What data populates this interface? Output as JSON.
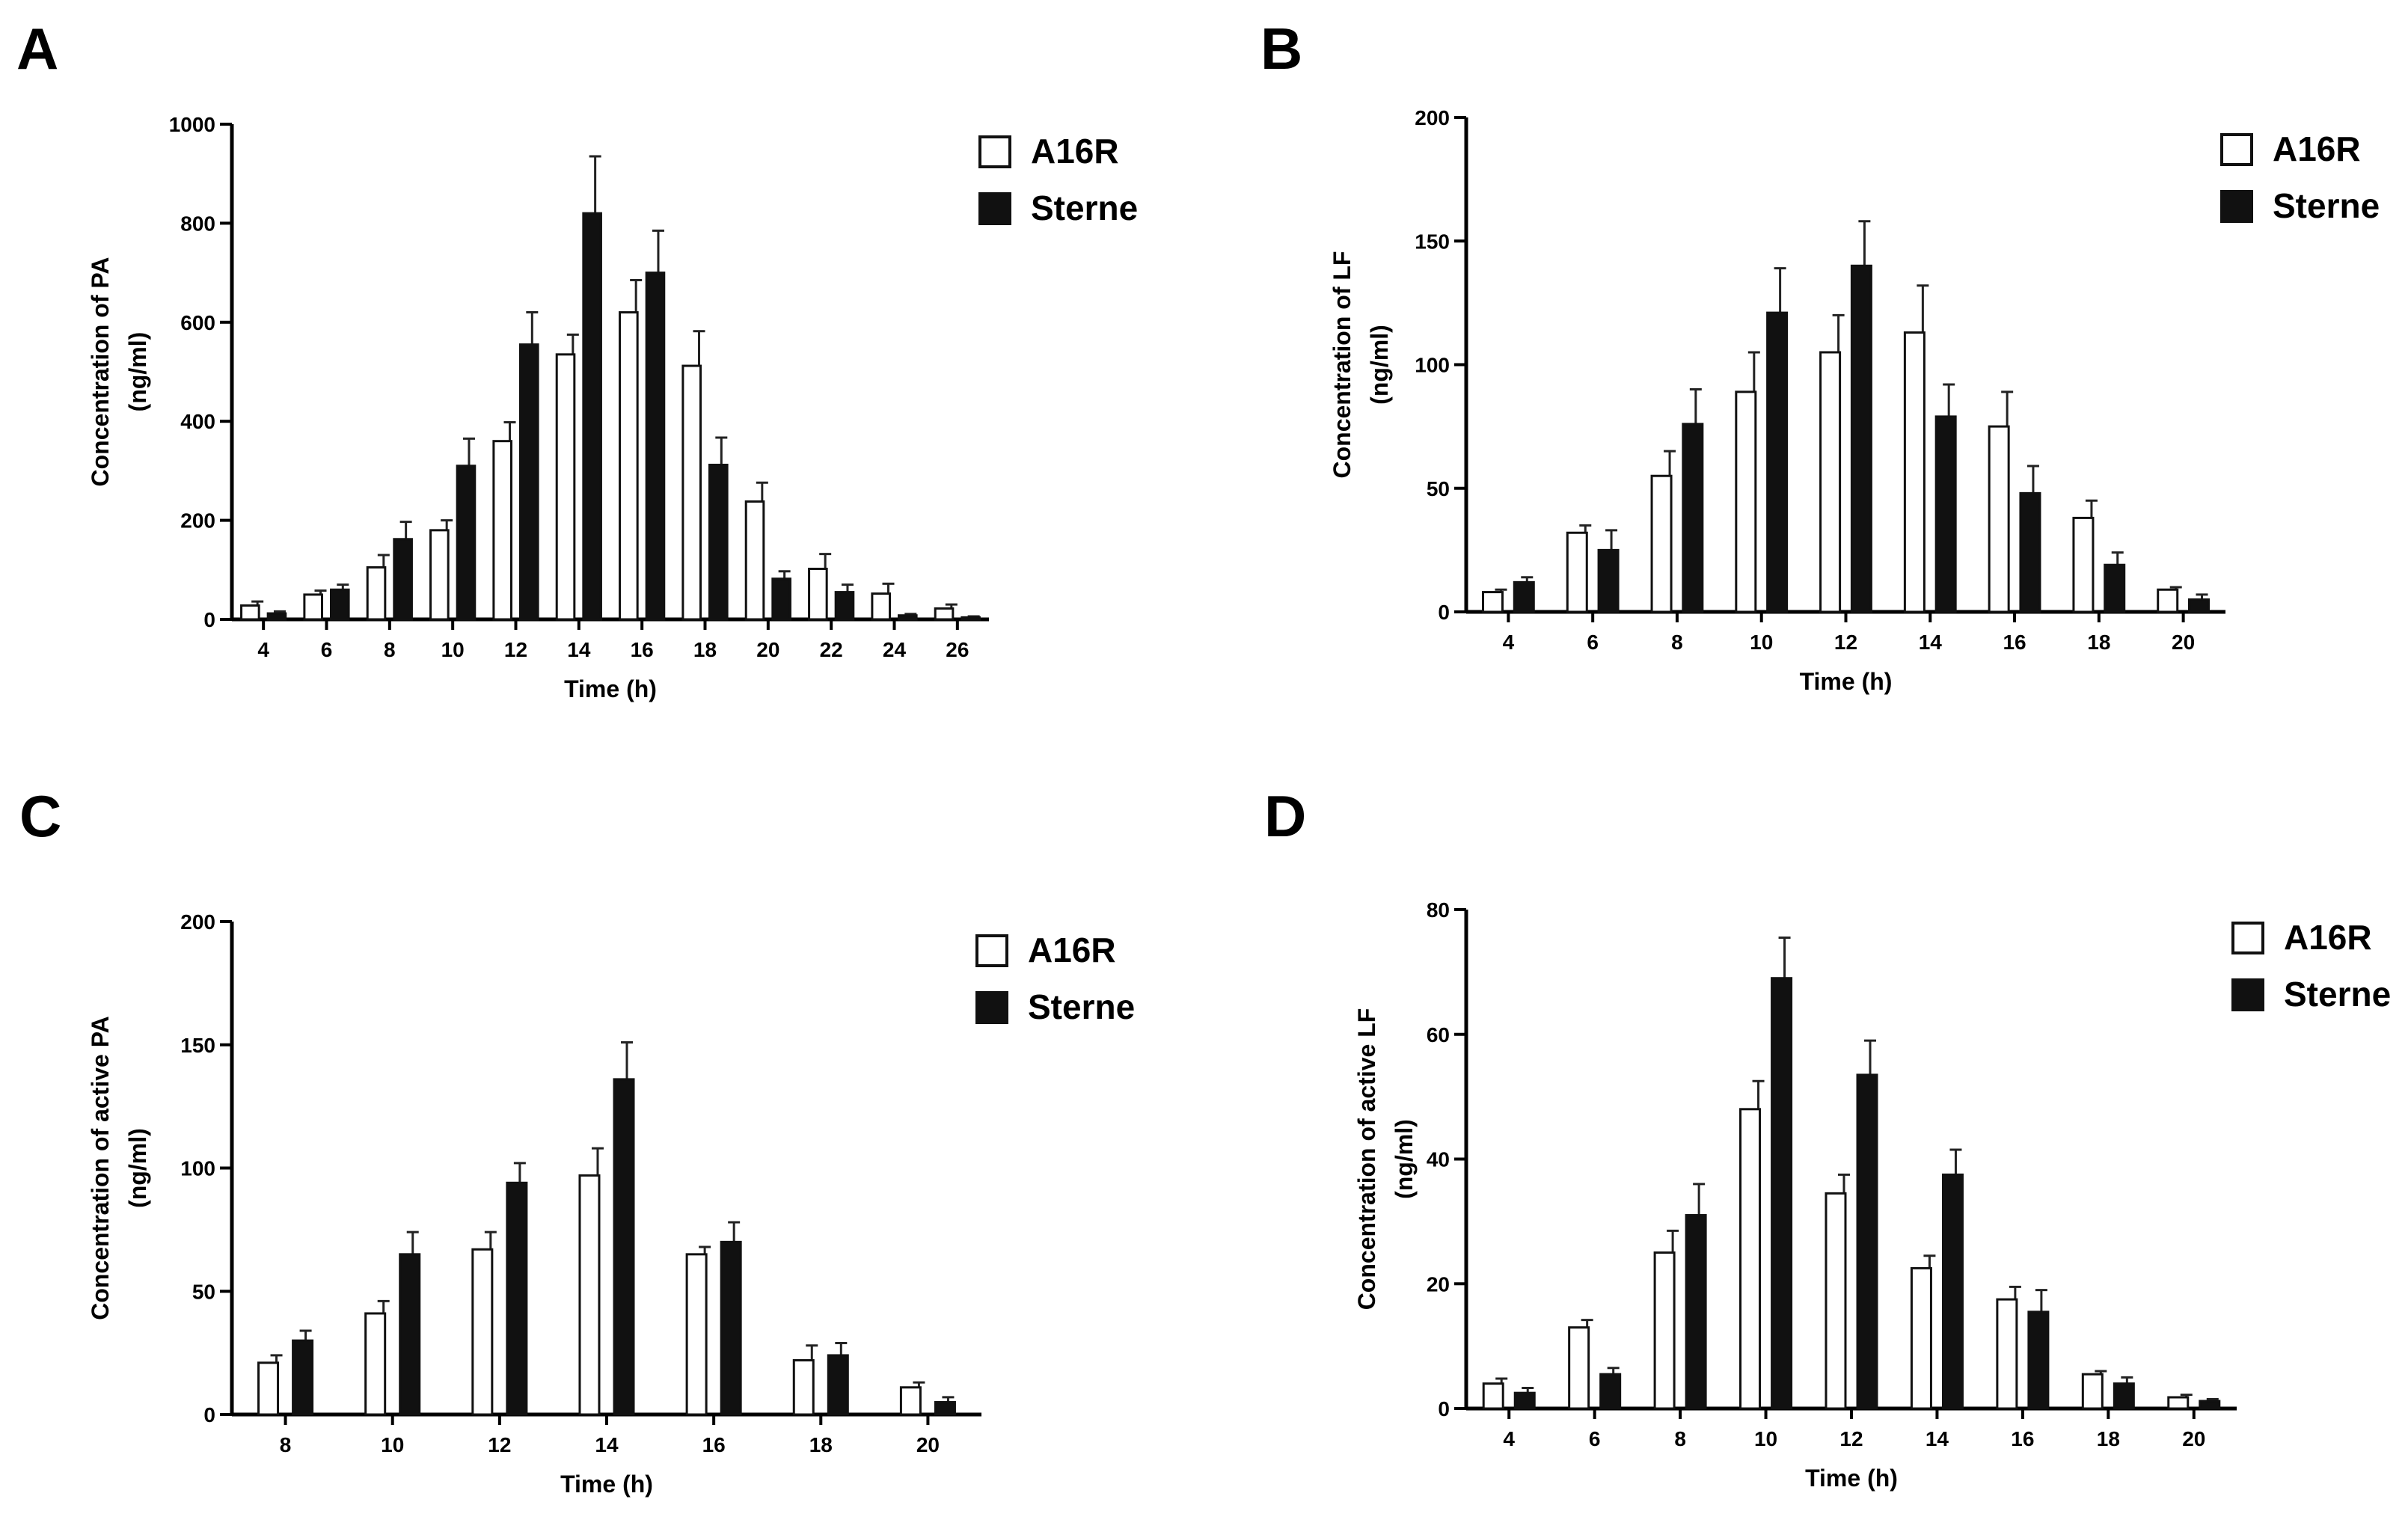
{
  "colors": {
    "a16r_fill": "#ffffff",
    "sterne_fill": "#111111",
    "axis": "#000000",
    "background": "#ffffff"
  },
  "chart_data": [
    {
      "panel": "A",
      "type": "bar",
      "title": "",
      "xlabel": "Time (h)",
      "ylabel_line1": "Concentration of PA",
      "ylabel_line2": "(ng/ml)",
      "categories": [
        "4",
        "6",
        "8",
        "10",
        "12",
        "14",
        "16",
        "18",
        "20",
        "22",
        "24",
        "26"
      ],
      "ylim": [
        0,
        1000
      ],
      "yticks": [
        0,
        200,
        400,
        600,
        800,
        1000
      ],
      "ytick_labels": [
        "0",
        "200",
        "400",
        "600",
        "800",
        "1000"
      ],
      "series": [
        {
          "name": "A16R",
          "values": [
            28,
            50,
            105,
            180,
            360,
            535,
            620,
            512,
            238,
            102,
            52,
            22
          ],
          "errors": [
            8,
            8,
            25,
            20,
            38,
            40,
            65,
            70,
            38,
            30,
            20,
            8
          ]
        },
        {
          "name": "Sterne",
          "values": [
            12,
            60,
            162,
            310,
            555,
            820,
            700,
            312,
            82,
            55,
            8,
            4
          ],
          "errors": [
            4,
            10,
            35,
            55,
            65,
            115,
            85,
            55,
            15,
            15,
            3,
            2
          ]
        }
      ],
      "legend": [
        "A16R",
        "Sterne"
      ],
      "legend_position": "top-right",
      "grid": false
    },
    {
      "panel": "B",
      "type": "bar",
      "title": "",
      "xlabel": "Time (h)",
      "ylabel_line1": "Concentration of LF",
      "ylabel_line2": "(ng/ml)",
      "categories": [
        "4",
        "6",
        "8",
        "10",
        "12",
        "14",
        "16",
        "18",
        "20"
      ],
      "ylim": [
        0,
        200
      ],
      "yticks": [
        0,
        50,
        100,
        150,
        200
      ],
      "ytick_labels": [
        "0",
        "50",
        "100",
        "150",
        "200"
      ],
      "series": [
        {
          "name": "A16R",
          "values": [
            8,
            32,
            55,
            89,
            105,
            113,
            75,
            38,
            9
          ],
          "errors": [
            1,
            3,
            10,
            16,
            15,
            19,
            14,
            7,
            1
          ]
        },
        {
          "name": "Sterne",
          "values": [
            12,
            25,
            76,
            121,
            140,
            79,
            48,
            19,
            5
          ],
          "errors": [
            2,
            8,
            14,
            18,
            18,
            13,
            11,
            5,
            2
          ]
        }
      ],
      "legend": [
        "A16R",
        "Sterne"
      ],
      "legend_position": "top-right",
      "grid": false
    },
    {
      "panel": "C",
      "type": "bar",
      "title": "",
      "xlabel": "Time (h)",
      "ylabel_line1": "Concentration of active PA",
      "ylabel_line2": "(ng/ml)",
      "categories": [
        "8",
        "10",
        "12",
        "14",
        "16",
        "18",
        "20"
      ],
      "ylim": [
        0,
        200
      ],
      "yticks": [
        0,
        50,
        100,
        150,
        200
      ],
      "ytick_labels": [
        "0",
        "50",
        "100",
        "150",
        "200"
      ],
      "series": [
        {
          "name": "A16R",
          "values": [
            21,
            41,
            67,
            97,
            65,
            22,
            11
          ],
          "errors": [
            3,
            5,
            7,
            11,
            3,
            6,
            2
          ]
        },
        {
          "name": "Sterne",
          "values": [
            30,
            65,
            94,
            136,
            70,
            24,
            5
          ],
          "errors": [
            4,
            9,
            8,
            15,
            8,
            5,
            2
          ]
        }
      ],
      "legend": [
        "A16R",
        "Sterne"
      ],
      "legend_position": "top-right",
      "grid": false
    },
    {
      "panel": "D",
      "type": "bar",
      "title": "",
      "xlabel": "Time (h)",
      "ylabel_line1": "Concentration of active LF",
      "ylabel_line2": "(ng/ml)",
      "categories": [
        "4",
        "6",
        "8",
        "10",
        "12",
        "14",
        "16",
        "18",
        "20"
      ],
      "ylim": [
        0,
        80
      ],
      "yticks": [
        0,
        20,
        40,
        60,
        80
      ],
      "ytick_labels": [
        "0",
        "20",
        "40",
        "60",
        "80"
      ],
      "series": [
        {
          "name": "A16R",
          "values": [
            4,
            13,
            25,
            48,
            34.5,
            22.5,
            17.5,
            5.5,
            1.8
          ],
          "errors": [
            0.8,
            1.2,
            3.5,
            4.5,
            3,
            2,
            2,
            0.5,
            0.4
          ]
        },
        {
          "name": "Sterne",
          "values": [
            2.5,
            5.5,
            31,
            69,
            53.5,
            37.5,
            15.5,
            4,
            1.2
          ],
          "errors": [
            0.8,
            1,
            5,
            6.5,
            5.5,
            4,
            3.5,
            1,
            0.3
          ]
        }
      ],
      "legend": [
        "A16R",
        "Sterne"
      ],
      "legend_position": "top-right",
      "grid": false
    }
  ]
}
